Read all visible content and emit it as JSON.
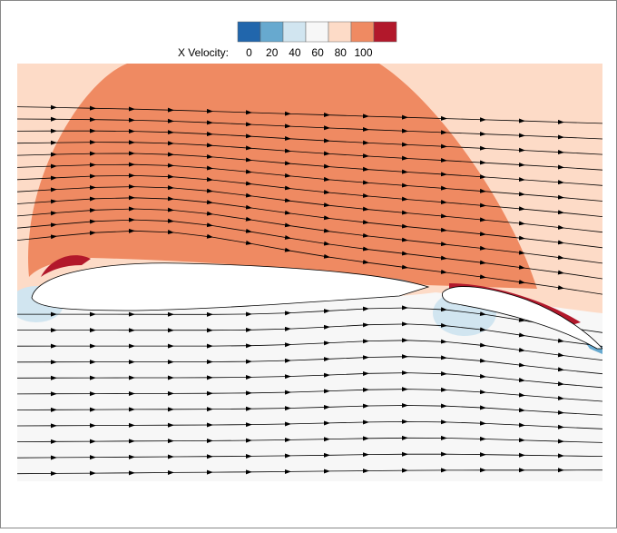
{
  "chart_data": {
    "type": "contour",
    "colorbar": {
      "label": "X Velocity:",
      "ticks": [
        0,
        20,
        40,
        60,
        80,
        100
      ],
      "colors": [
        "#2166ac",
        "#67a9cf",
        "#d1e5f0",
        "#f7f7f7",
        "#fddbc7",
        "#ef8a62",
        "#b2182b"
      ]
    }
  }
}
